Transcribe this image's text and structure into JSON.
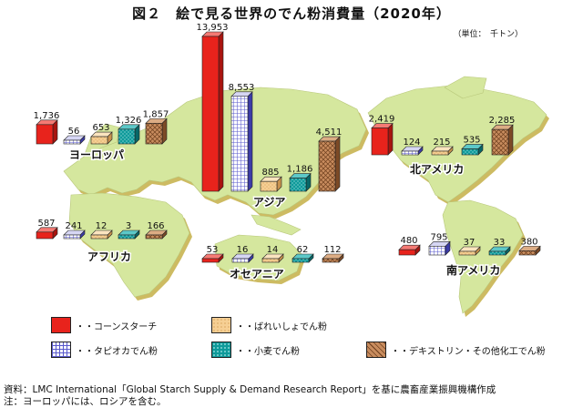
{
  "title": "図２　絵で見る世界のでん粉消費量（2020年）",
  "unit_note": "（単位：　千トン）",
  "source_text": "資料：LMC International「Global Starch Supply & Demand Research Report」を基に農畜産業振興機構作成",
  "note_text": "注：ヨーロッパには、ロシアを含む。",
  "colors": {
    "corn": "#e8231c",
    "tapioca": "#6f6fd6",
    "potato": "#f4c98a",
    "wheat": "#0f9a9a",
    "other": "#b97b4f",
    "map": "#cfe39a",
    "map_edge": "#c9b866"
  },
  "chart_data": {
    "type": "bar",
    "title": "図２　絵で見る世界のでん粉消費量（2020年）",
    "unit": "千トン",
    "series": [
      {
        "key": "corn",
        "name": "・・コーンスターチ"
      },
      {
        "key": "tapioca",
        "name": "・・タピオカでん粉"
      },
      {
        "key": "potato",
        "name": "・・ばれいしょでん粉"
      },
      {
        "key": "wheat",
        "name": "・・小麦でん粉"
      },
      {
        "key": "other",
        "name": "・・デキストリン・その他化工でん粉"
      }
    ],
    "regions": [
      {
        "name": "ヨーロッパ",
        "values": {
          "corn": 1736,
          "tapioca": 56,
          "potato": 653,
          "wheat": 1326,
          "other": 1857
        },
        "labels": [
          "1,736",
          "56",
          "653",
          "1,326",
          "1,857"
        ]
      },
      {
        "name": "アジア",
        "values": {
          "corn": 13953,
          "tapioca": 8553,
          "potato": 885,
          "wheat": 1186,
          "other": 4511
        },
        "labels": [
          "13,953",
          "8,553",
          "885",
          "1,186",
          "4,511"
        ]
      },
      {
        "name": "北アメリカ",
        "values": {
          "corn": 2419,
          "tapioca": 124,
          "potato": 215,
          "wheat": 535,
          "other": 2285
        },
        "labels": [
          "2,419",
          "124",
          "215",
          "535",
          "2,285"
        ]
      },
      {
        "name": "アフリカ",
        "values": {
          "corn": 587,
          "tapioca": 241,
          "potato": 12,
          "wheat": 3,
          "other": 166
        },
        "labels": [
          "587",
          "241",
          "12",
          "3",
          "166"
        ]
      },
      {
        "name": "オセアニア",
        "values": {
          "corn": 53,
          "tapioca": 16,
          "potato": 14,
          "wheat": 62,
          "other": 112
        },
        "labels": [
          "53",
          "16",
          "14",
          "62",
          "112"
        ]
      },
      {
        "name": "南アメリカ",
        "values": {
          "corn": 480,
          "tapioca": 795,
          "potato": 37,
          "wheat": 33,
          "other": 380
        },
        "labels": [
          "480",
          "795",
          "37",
          "33",
          "380"
        ]
      }
    ]
  }
}
